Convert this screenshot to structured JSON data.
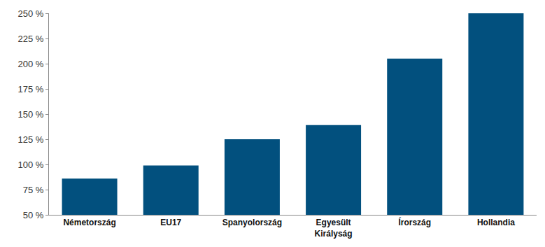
{
  "chart_data": {
    "type": "bar",
    "categories": [
      "Németország",
      "EU17",
      "Spanyolország",
      "Egyesült\nKirályság",
      "Írország",
      "Hollandia"
    ],
    "values": [
      86,
      99,
      125,
      139,
      205,
      250
    ],
    "color": "#02507e",
    "ylim": [
      50,
      250
    ],
    "yticks": [
      {
        "value": 50,
        "label": "50 %"
      },
      {
        "value": 75,
        "label": "75 %"
      },
      {
        "value": 100,
        "label": "100 %"
      },
      {
        "value": 125,
        "label": "125 %"
      },
      {
        "value": 150,
        "label": "150 %"
      },
      {
        "value": 175,
        "label": "175 %"
      },
      {
        "value": 200,
        "label": "200 %"
      },
      {
        "value": 225,
        "label": "225 %"
      },
      {
        "value": 250,
        "label": "250 %"
      }
    ],
    "grid": false
  }
}
